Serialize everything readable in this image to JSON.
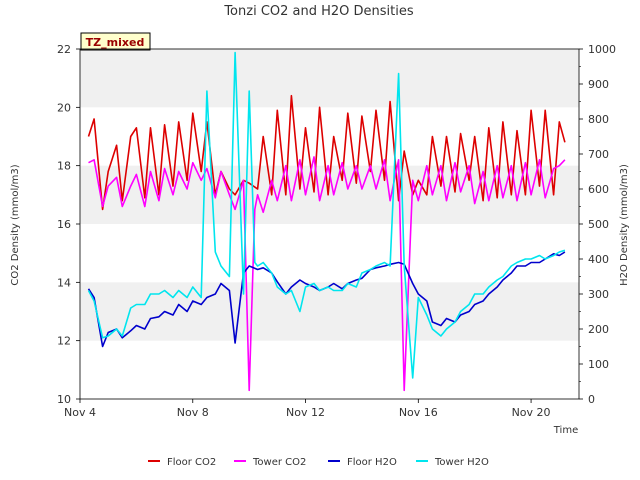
{
  "chart_data": {
    "type": "line",
    "title": "Tonzi CO2 and H2O Densities",
    "xlabel": "Time",
    "ylabel_left": "CO2 Density (mmol/m3)",
    "ylabel_right": "H2O Density (mmol/m3)",
    "badge": "TZ_mixed",
    "x_range": [
      "Nov 4",
      "Nov 21.7"
    ],
    "x_ticks": [
      "Nov 4",
      "Nov 8",
      "Nov 12",
      "Nov 16",
      "Nov 20"
    ],
    "ylim_left": [
      10,
      22
    ],
    "yticks_left": [
      10,
      12,
      14,
      16,
      18,
      20,
      22
    ],
    "ylim_right": [
      0,
      1000
    ],
    "yticks_right": [
      0,
      100,
      200,
      300,
      400,
      500,
      600,
      700,
      800,
      900,
      1000
    ],
    "grid": "horizontal bands",
    "legend_position": "bottom",
    "series": [
      {
        "name": "Floor CO2",
        "axis": "left",
        "color": "#dd0000",
        "x": [
          4.3,
          4.5,
          4.8,
          5.0,
          5.3,
          5.5,
          5.8,
          6.0,
          6.3,
          6.5,
          6.8,
          7.0,
          7.3,
          7.5,
          7.8,
          8.0,
          8.3,
          8.5,
          8.8,
          9.0,
          9.3,
          9.5,
          9.8,
          10.0,
          10.3,
          10.5,
          10.8,
          11.0,
          11.3,
          11.5,
          11.8,
          12.0,
          12.3,
          12.5,
          12.8,
          13.0,
          13.3,
          13.5,
          13.8,
          14.0,
          14.3,
          14.5,
          14.8,
          15.0,
          15.3,
          15.5,
          15.8,
          16.0,
          16.3,
          16.5,
          16.8,
          17.0,
          17.3,
          17.5,
          17.8,
          18.0,
          18.3,
          18.5,
          18.8,
          19.0,
          19.3,
          19.5,
          19.8,
          20.0,
          20.3,
          20.5,
          20.8,
          21.0,
          21.2
        ],
        "y": [
          19.0,
          19.6,
          16.5,
          17.8,
          18.7,
          16.8,
          19.0,
          19.3,
          16.9,
          19.3,
          17.0,
          19.4,
          17.3,
          19.5,
          17.5,
          19.8,
          17.8,
          19.5,
          17.0,
          17.8,
          17.2,
          17.0,
          17.5,
          17.4,
          17.2,
          19.0,
          17.0,
          19.9,
          17.0,
          20.4,
          17.2,
          19.3,
          17.1,
          20.0,
          17.0,
          19.0,
          17.5,
          19.8,
          17.4,
          19.7,
          17.8,
          19.9,
          17.5,
          20.2,
          16.8,
          18.5,
          17.0,
          17.5,
          17.0,
          19.0,
          17.3,
          19.0,
          17.1,
          19.1,
          17.5,
          19.0,
          16.8,
          19.3,
          16.9,
          19.5,
          17.0,
          19.2,
          17.0,
          19.9,
          17.3,
          19.9,
          17.0,
          19.5,
          18.8
        ]
      },
      {
        "name": "Tower CO2",
        "axis": "left",
        "color": "#ff00ff",
        "x": [
          4.3,
          4.5,
          4.8,
          5.0,
          5.3,
          5.5,
          5.8,
          6.0,
          6.3,
          6.5,
          6.8,
          7.0,
          7.3,
          7.5,
          7.8,
          8.0,
          8.3,
          8.5,
          8.8,
          9.0,
          9.3,
          9.5,
          9.8,
          10.0,
          10.2,
          10.3,
          10.5,
          10.8,
          11.0,
          11.3,
          11.5,
          11.8,
          12.0,
          12.3,
          12.5,
          12.8,
          13.0,
          13.3,
          13.5,
          13.8,
          14.0,
          14.3,
          14.5,
          14.8,
          15.0,
          15.3,
          15.5,
          15.8,
          16.0,
          16.3,
          16.5,
          16.8,
          17.0,
          17.3,
          17.5,
          17.8,
          18.0,
          18.3,
          18.5,
          18.8,
          19.0,
          19.3,
          19.5,
          19.8,
          20.0,
          20.3,
          20.5,
          20.8,
          21.0,
          21.2
        ],
        "y": [
          18.1,
          18.2,
          16.6,
          17.3,
          17.6,
          16.6,
          17.3,
          17.7,
          16.6,
          17.8,
          16.8,
          17.9,
          17.0,
          17.8,
          17.2,
          18.1,
          17.5,
          17.9,
          16.9,
          17.8,
          17.0,
          16.5,
          17.5,
          10.3,
          16.5,
          17.0,
          16.4,
          17.5,
          16.8,
          18.0,
          16.8,
          18.2,
          17.0,
          18.3,
          16.8,
          18.0,
          17.0,
          18.1,
          17.2,
          18.0,
          17.2,
          18.0,
          17.2,
          18.2,
          16.8,
          18.2,
          10.3,
          17.5,
          16.8,
          18.0,
          17.0,
          18.0,
          16.8,
          18.1,
          17.1,
          18.0,
          16.7,
          17.8,
          16.8,
          18.0,
          16.9,
          18.0,
          16.8,
          18.1,
          17.0,
          18.2,
          16.9,
          17.9,
          18.0,
          18.2
        ]
      },
      {
        "name": "Floor H2O",
        "axis": "right",
        "color": "#0000cc",
        "x": [
          4.3,
          4.5,
          4.8,
          5.0,
          5.3,
          5.5,
          5.8,
          6.0,
          6.3,
          6.5,
          6.8,
          7.0,
          7.3,
          7.5,
          7.8,
          8.0,
          8.3,
          8.5,
          8.8,
          9.0,
          9.3,
          9.5,
          9.8,
          10.0,
          10.3,
          10.5,
          10.8,
          11.0,
          11.3,
          11.5,
          11.8,
          12.0,
          12.3,
          12.5,
          12.8,
          13.0,
          13.3,
          13.5,
          13.8,
          14.0,
          14.3,
          14.5,
          14.8,
          15.0,
          15.3,
          15.5,
          15.8,
          16.0,
          16.3,
          16.5,
          16.8,
          17.0,
          17.3,
          17.5,
          17.8,
          18.0,
          18.3,
          18.5,
          18.8,
          19.0,
          19.3,
          19.5,
          19.8,
          20.0,
          20.3,
          20.5,
          20.8,
          21.0,
          21.2
        ],
        "y": [
          315,
          290,
          150,
          190,
          200,
          175,
          195,
          210,
          200,
          230,
          235,
          250,
          240,
          270,
          250,
          280,
          270,
          290,
          300,
          330,
          310,
          160,
          360,
          380,
          370,
          375,
          360,
          335,
          300,
          320,
          340,
          330,
          320,
          310,
          320,
          330,
          315,
          330,
          340,
          345,
          370,
          375,
          380,
          385,
          390,
          385,
          330,
          300,
          280,
          220,
          210,
          230,
          220,
          240,
          250,
          270,
          280,
          300,
          320,
          340,
          360,
          380,
          380,
          390,
          390,
          400,
          415,
          410,
          420
        ]
      },
      {
        "name": "Tower H2O",
        "axis": "right",
        "color": "#00e5ee",
        "x": [
          4.3,
          4.5,
          4.8,
          5.0,
          5.3,
          5.5,
          5.8,
          6.0,
          6.3,
          6.5,
          6.8,
          7.0,
          7.3,
          7.5,
          7.8,
          8.0,
          8.3,
          8.5,
          8.8,
          9.0,
          9.3,
          9.5,
          9.8,
          10.0,
          10.2,
          10.3,
          10.5,
          10.8,
          11.0,
          11.3,
          11.5,
          11.8,
          12.0,
          12.3,
          12.5,
          12.8,
          13.0,
          13.3,
          13.5,
          13.8,
          14.0,
          14.3,
          14.5,
          14.8,
          15.0,
          15.3,
          15.5,
          15.8,
          16.0,
          16.3,
          16.5,
          16.8,
          17.0,
          17.3,
          17.5,
          17.8,
          18.0,
          18.3,
          18.5,
          18.8,
          19.0,
          19.3,
          19.5,
          19.8,
          20.0,
          20.3,
          20.5,
          20.8,
          21.0,
          21.2
        ],
        "y": [
          310,
          280,
          175,
          180,
          200,
          180,
          260,
          270,
          270,
          300,
          300,
          310,
          290,
          310,
          290,
          320,
          290,
          880,
          420,
          380,
          350,
          990,
          300,
          880,
          390,
          380,
          390,
          360,
          320,
          300,
          310,
          250,
          320,
          330,
          310,
          320,
          310,
          310,
          330,
          320,
          360,
          370,
          380,
          390,
          380,
          930,
          380,
          60,
          290,
          240,
          200,
          180,
          200,
          220,
          250,
          270,
          300,
          300,
          320,
          340,
          350,
          380,
          390,
          400,
          400,
          410,
          400,
          410,
          420,
          425
        ]
      }
    ]
  }
}
